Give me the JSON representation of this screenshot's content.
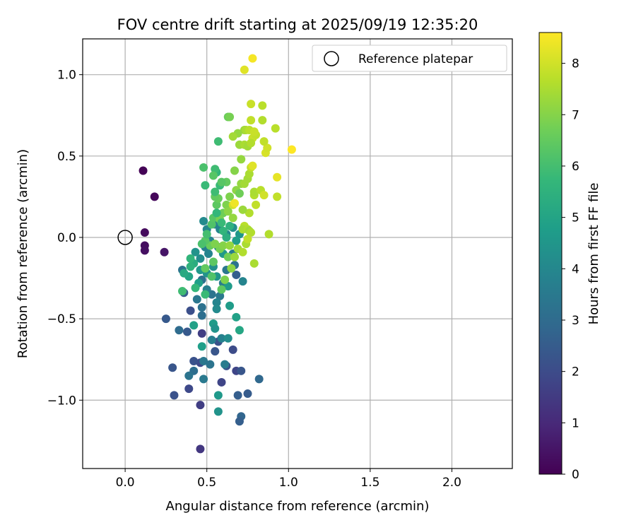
{
  "chart_data": {
    "type": "scatter",
    "title": "FOV centre drift starting at 2025/09/19 12:35:20",
    "xlabel": "Angular distance from reference (arcmin)",
    "ylabel": "Rotation from reference (arcmin)",
    "xlim": [
      -0.26,
      2.37
    ],
    "ylim": [
      -1.42,
      1.22
    ],
    "xticks": [
      0.0,
      0.5,
      1.0,
      1.5,
      2.0
    ],
    "xtick_labels": [
      "0.0",
      "0.5",
      "1.0",
      "1.5",
      "2.0"
    ],
    "yticks": [
      -1.0,
      -0.5,
      0.0,
      0.5,
      1.0
    ],
    "ytick_labels": [
      "−1.0",
      "−0.5",
      "0.0",
      "0.5",
      "1.0"
    ],
    "grid": true,
    "legend": {
      "position": "top-right",
      "label": "Reference platepar"
    },
    "reference_point": {
      "x": 0.0,
      "y": 0.0
    },
    "colorbar": {
      "label": "Hours from first FF file",
      "range": [
        0,
        8.6
      ],
      "ticks": [
        0,
        1,
        2,
        3,
        4,
        5,
        6,
        7,
        8
      ],
      "tick_labels": [
        "0",
        "1",
        "2",
        "3",
        "4",
        "5",
        "6",
        "7",
        "8"
      ],
      "colormap": "viridis",
      "stops": [
        "#440154",
        "#482878",
        "#3e4989",
        "#31688e",
        "#26828e",
        "#1f9e89",
        "#35b779",
        "#6ece58",
        "#b5de2b",
        "#fde725"
      ]
    },
    "points": [
      {
        "x": 0.11,
        "y": 0.41,
        "t": 0.05
      },
      {
        "x": 0.18,
        "y": 0.25,
        "t": 0.15
      },
      {
        "x": 0.12,
        "y": 0.03,
        "t": 0.25
      },
      {
        "x": 0.12,
        "y": -0.05,
        "t": 0.3
      },
      {
        "x": 0.12,
        "y": -0.08,
        "t": 0.35
      },
      {
        "x": 0.24,
        "y": -0.09,
        "t": 0.5
      },
      {
        "x": 0.46,
        "y": -1.3,
        "t": 1.4
      },
      {
        "x": 0.46,
        "y": -1.03,
        "t": 1.6
      },
      {
        "x": 0.59,
        "y": -0.89,
        "t": 1.8
      },
      {
        "x": 0.46,
        "y": -0.77,
        "t": 1.9
      },
      {
        "x": 0.39,
        "y": -0.93,
        "t": 1.9
      },
      {
        "x": 0.3,
        "y": -0.97,
        "t": 2.2
      },
      {
        "x": 0.29,
        "y": -0.8,
        "t": 2.3
      },
      {
        "x": 0.42,
        "y": -0.76,
        "t": 2.2
      },
      {
        "x": 0.68,
        "y": -0.82,
        "t": 1.8
      },
      {
        "x": 0.71,
        "y": -0.82,
        "t": 2.3
      },
      {
        "x": 0.62,
        "y": -0.79,
        "t": 2.2
      },
      {
        "x": 0.75,
        "y": -0.96,
        "t": 2.5
      },
      {
        "x": 0.69,
        "y": -0.97,
        "t": 2.6
      },
      {
        "x": 0.71,
        "y": -1.1,
        "t": 2.8
      },
      {
        "x": 0.7,
        "y": -1.13,
        "t": 2.6
      },
      {
        "x": 0.82,
        "y": -0.87,
        "t": 2.9
      },
      {
        "x": 0.66,
        "y": -0.69,
        "t": 2.0
      },
      {
        "x": 0.55,
        "y": -0.7,
        "t": 2.3
      },
      {
        "x": 0.47,
        "y": -0.59,
        "t": 1.6
      },
      {
        "x": 0.57,
        "y": -0.64,
        "t": 2.2
      },
      {
        "x": 0.25,
        "y": -0.5,
        "t": 2.4
      },
      {
        "x": 0.4,
        "y": -0.45,
        "t": 2.1
      },
      {
        "x": 0.38,
        "y": -0.58,
        "t": 2.4
      },
      {
        "x": 0.33,
        "y": -0.57,
        "t": 3.0
      },
      {
        "x": 0.42,
        "y": -0.82,
        "t": 3.1
      },
      {
        "x": 0.39,
        "y": -0.85,
        "t": 3.3
      },
      {
        "x": 0.48,
        "y": -0.76,
        "t": 3.4
      },
      {
        "x": 0.48,
        "y": -0.87,
        "t": 3.5
      },
      {
        "x": 0.52,
        "y": -0.78,
        "t": 3.3
      },
      {
        "x": 0.61,
        "y": -0.78,
        "t": 3.6
      },
      {
        "x": 0.53,
        "y": -0.63,
        "t": 3.7
      },
      {
        "x": 0.59,
        "y": -0.62,
        "t": 3.8
      },
      {
        "x": 0.63,
        "y": -0.62,
        "t": 4.2
      },
      {
        "x": 0.57,
        "y": -1.07,
        "t": 4.4
      },
      {
        "x": 0.57,
        "y": -0.97,
        "t": 4.6
      },
      {
        "x": 0.47,
        "y": -0.67,
        "t": 4.8
      },
      {
        "x": 0.42,
        "y": -0.54,
        "t": 4.9
      },
      {
        "x": 0.54,
        "y": -0.53,
        "t": 4.7
      },
      {
        "x": 0.55,
        "y": -0.56,
        "t": 4.4
      },
      {
        "x": 0.36,
        "y": -0.34,
        "t": 2.6
      },
      {
        "x": 0.35,
        "y": -0.2,
        "t": 3.3
      },
      {
        "x": 0.47,
        "y": -0.26,
        "t": 3.2
      },
      {
        "x": 0.44,
        "y": -0.38,
        "t": 3.4
      },
      {
        "x": 0.47,
        "y": -0.48,
        "t": 3.1
      },
      {
        "x": 0.47,
        "y": -0.43,
        "t": 3.2
      },
      {
        "x": 0.53,
        "y": -0.35,
        "t": 3.3
      },
      {
        "x": 0.58,
        "y": -0.36,
        "t": 3.5
      },
      {
        "x": 0.56,
        "y": -0.4,
        "t": 3.9
      },
      {
        "x": 0.56,
        "y": -0.44,
        "t": 4.1
      },
      {
        "x": 0.5,
        "y": -0.32,
        "t": 3.7
      },
      {
        "x": 0.6,
        "y": -0.28,
        "t": 3.6
      },
      {
        "x": 0.62,
        "y": -0.2,
        "t": 3.4
      },
      {
        "x": 0.67,
        "y": -0.17,
        "t": 3.3
      },
      {
        "x": 0.68,
        "y": -0.23,
        "t": 2.6
      },
      {
        "x": 0.66,
        "y": -0.1,
        "t": 3.6
      },
      {
        "x": 0.72,
        "y": -0.27,
        "t": 3.9
      },
      {
        "x": 0.64,
        "y": -0.42,
        "t": 4.7
      },
      {
        "x": 0.68,
        "y": -0.49,
        "t": 4.9
      },
      {
        "x": 0.7,
        "y": -0.57,
        "t": 5.1
      },
      {
        "x": 0.57,
        "y": -0.06,
        "t": 3.9
      },
      {
        "x": 0.51,
        "y": -0.1,
        "t": 3.9
      },
      {
        "x": 0.46,
        "y": -0.13,
        "t": 4.2
      },
      {
        "x": 0.43,
        "y": -0.09,
        "t": 4.4
      },
      {
        "x": 0.46,
        "y": -0.2,
        "t": 4.6
      },
      {
        "x": 0.45,
        "y": -0.28,
        "t": 4.8
      },
      {
        "x": 0.39,
        "y": -0.24,
        "t": 5.0
      },
      {
        "x": 0.36,
        "y": -0.22,
        "t": 5.2
      },
      {
        "x": 0.42,
        "y": -0.16,
        "t": 5.3
      },
      {
        "x": 0.49,
        "y": -0.06,
        "t": 3.8
      },
      {
        "x": 0.52,
        "y": -0.02,
        "t": 3.9
      },
      {
        "x": 0.5,
        "y": 0.05,
        "t": 4.0
      },
      {
        "x": 0.48,
        "y": 0.1,
        "t": 4.1
      },
      {
        "x": 0.55,
        "y": 0.08,
        "t": 3.8
      },
      {
        "x": 0.58,
        "y": 0.05,
        "t": 3.9
      },
      {
        "x": 0.62,
        "y": 0.02,
        "t": 4.0
      },
      {
        "x": 0.66,
        "y": 0.06,
        "t": 4.3
      },
      {
        "x": 0.7,
        "y": 0.02,
        "t": 4.5
      },
      {
        "x": 0.68,
        "y": -0.02,
        "t": 4.8
      },
      {
        "x": 0.6,
        "y": -0.1,
        "t": 4.6
      },
      {
        "x": 0.54,
        "y": -0.18,
        "t": 4.3
      },
      {
        "x": 0.56,
        "y": -0.24,
        "t": 4.5
      },
      {
        "x": 0.63,
        "y": -0.3,
        "t": 4.7
      },
      {
        "x": 0.5,
        "y": -0.22,
        "t": 4.4
      },
      {
        "x": 0.4,
        "y": -0.18,
        "t": 5.5
      },
      {
        "x": 0.4,
        "y": -0.13,
        "t": 5.6
      },
      {
        "x": 0.43,
        "y": -0.31,
        "t": 5.7
      },
      {
        "x": 0.35,
        "y": -0.33,
        "t": 5.9
      },
      {
        "x": 0.49,
        "y": -0.35,
        "t": 5.8
      },
      {
        "x": 0.53,
        "y": -0.24,
        "t": 6.2
      },
      {
        "x": 0.49,
        "y": -0.19,
        "t": 6.5
      },
      {
        "x": 0.54,
        "y": -0.15,
        "t": 6.4
      },
      {
        "x": 0.58,
        "y": -0.07,
        "t": 6.8
      },
      {
        "x": 0.6,
        "y": -0.05,
        "t": 7.0
      },
      {
        "x": 0.52,
        "y": -0.05,
        "t": 6.6
      },
      {
        "x": 0.49,
        "y": -0.02,
        "t": 6.3
      },
      {
        "x": 0.47,
        "y": -0.04,
        "t": 6.1
      },
      {
        "x": 0.55,
        "y": -0.04,
        "t": 6.9
      },
      {
        "x": 0.63,
        "y": -0.12,
        "t": 6.7
      },
      {
        "x": 0.65,
        "y": -0.19,
        "t": 7.1
      },
      {
        "x": 0.61,
        "y": -0.26,
        "t": 6.9
      },
      {
        "x": 0.59,
        "y": -0.32,
        "t": 6.4
      },
      {
        "x": 0.67,
        "y": -0.12,
        "t": 7.3
      },
      {
        "x": 0.69,
        "y": -0.07,
        "t": 7.4
      },
      {
        "x": 0.72,
        "y": -0.09,
        "t": 7.6
      },
      {
        "x": 0.74,
        "y": -0.04,
        "t": 7.5
      },
      {
        "x": 0.79,
        "y": -0.16,
        "t": 7.5
      },
      {
        "x": 0.64,
        "y": -0.05,
        "t": 7.2
      },
      {
        "x": 0.5,
        "y": 0.02,
        "t": 6.0
      },
      {
        "x": 0.53,
        "y": 0.08,
        "t": 6.2
      },
      {
        "x": 0.54,
        "y": 0.12,
        "t": 6.3
      },
      {
        "x": 0.56,
        "y": 0.2,
        "t": 6.4
      },
      {
        "x": 0.57,
        "y": 0.24,
        "t": 6.6
      },
      {
        "x": 0.55,
        "y": 0.25,
        "t": 6.5
      },
      {
        "x": 0.6,
        "y": 0.15,
        "t": 6.7
      },
      {
        "x": 0.62,
        "y": 0.2,
        "t": 6.9
      },
      {
        "x": 0.63,
        "y": 0.16,
        "t": 7.1
      },
      {
        "x": 0.66,
        "y": 0.12,
        "t": 7.2
      },
      {
        "x": 0.58,
        "y": 0.11,
        "t": 6.8
      },
      {
        "x": 0.59,
        "y": 0.09,
        "t": 5.8
      },
      {
        "x": 0.6,
        "y": 0.04,
        "t": 5.6
      },
      {
        "x": 0.62,
        "y": 0.0,
        "t": 5.4
      },
      {
        "x": 0.64,
        "y": 0.07,
        "t": 5.5
      },
      {
        "x": 0.56,
        "y": 0.15,
        "t": 5.7
      },
      {
        "x": 0.55,
        "y": 0.28,
        "t": 5.9
      },
      {
        "x": 0.58,
        "y": 0.32,
        "t": 5.8
      },
      {
        "x": 0.56,
        "y": 0.4,
        "t": 5.6
      },
      {
        "x": 0.55,
        "y": 0.42,
        "t": 5.9
      },
      {
        "x": 0.49,
        "y": 0.32,
        "t": 5.8
      },
      {
        "x": 0.48,
        "y": 0.43,
        "t": 6.1
      },
      {
        "x": 0.54,
        "y": 0.38,
        "t": 6.3
      },
      {
        "x": 0.57,
        "y": 0.59,
        "t": 5.9
      },
      {
        "x": 0.63,
        "y": 0.74,
        "t": 6.6
      },
      {
        "x": 0.64,
        "y": 0.74,
        "t": 6.8
      },
      {
        "x": 0.62,
        "y": 0.34,
        "t": 6.5
      },
      {
        "x": 0.59,
        "y": 0.34,
        "t": 6.3
      },
      {
        "x": 0.64,
        "y": 0.25,
        "t": 6.9
      },
      {
        "x": 0.68,
        "y": 0.29,
        "t": 7.1
      },
      {
        "x": 0.7,
        "y": 0.27,
        "t": 6.7
      },
      {
        "x": 0.67,
        "y": 0.41,
        "t": 7.0
      },
      {
        "x": 0.71,
        "y": 0.48,
        "t": 7.2
      },
      {
        "x": 0.7,
        "y": 0.57,
        "t": 7.3
      },
      {
        "x": 0.71,
        "y": 0.33,
        "t": 7.2
      },
      {
        "x": 0.73,
        "y": 0.33,
        "t": 7.4
      },
      {
        "x": 0.75,
        "y": 0.36,
        "t": 7.4
      },
      {
        "x": 0.76,
        "y": 0.39,
        "t": 7.5
      },
      {
        "x": 0.77,
        "y": 0.43,
        "t": 7.8
      },
      {
        "x": 0.78,
        "y": 0.44,
        "t": 8.2
      },
      {
        "x": 0.79,
        "y": 0.26,
        "t": 7.6
      },
      {
        "x": 0.79,
        "y": 0.28,
        "t": 7.5
      },
      {
        "x": 0.83,
        "y": 0.29,
        "t": 7.7
      },
      {
        "x": 0.85,
        "y": 0.26,
        "t": 8.0
      },
      {
        "x": 0.8,
        "y": 0.2,
        "t": 7.8
      },
      {
        "x": 0.76,
        "y": 0.15,
        "t": 7.6
      },
      {
        "x": 0.72,
        "y": 0.17,
        "t": 7.3
      },
      {
        "x": 0.73,
        "y": 0.07,
        "t": 7.7
      },
      {
        "x": 0.72,
        "y": 0.05,
        "t": 7.5
      },
      {
        "x": 0.75,
        "y": 0.05,
        "t": 7.6
      },
      {
        "x": 0.76,
        "y": 0.04,
        "t": 7.4
      },
      {
        "x": 0.77,
        "y": 0.03,
        "t": 7.6
      },
      {
        "x": 0.75,
        "y": -0.01,
        "t": 7.8
      },
      {
        "x": 0.66,
        "y": 0.2,
        "t": 8.0
      },
      {
        "x": 0.67,
        "y": 0.21,
        "t": 8.4
      },
      {
        "x": 0.88,
        "y": 0.02,
        "t": 7.6
      },
      {
        "x": 0.93,
        "y": 0.25,
        "t": 7.8
      },
      {
        "x": 0.93,
        "y": 0.37,
        "t": 8.3
      },
      {
        "x": 0.86,
        "y": 0.52,
        "t": 8.1
      },
      {
        "x": 0.87,
        "y": 0.55,
        "t": 8.0
      },
      {
        "x": 0.85,
        "y": 0.59,
        "t": 7.8
      },
      {
        "x": 0.92,
        "y": 0.67,
        "t": 7.7
      },
      {
        "x": 0.84,
        "y": 0.72,
        "t": 7.6
      },
      {
        "x": 0.84,
        "y": 0.81,
        "t": 7.7
      },
      {
        "x": 0.77,
        "y": 0.82,
        "t": 7.9
      },
      {
        "x": 0.77,
        "y": 0.72,
        "t": 7.8
      },
      {
        "x": 0.73,
        "y": 0.66,
        "t": 7.3
      },
      {
        "x": 0.74,
        "y": 0.66,
        "t": 7.5
      },
      {
        "x": 0.76,
        "y": 0.66,
        "t": 7.7
      },
      {
        "x": 0.78,
        "y": 0.61,
        "t": 7.9
      },
      {
        "x": 0.8,
        "y": 0.63,
        "t": 7.8
      },
      {
        "x": 0.79,
        "y": 0.65,
        "t": 7.9
      },
      {
        "x": 0.69,
        "y": 0.64,
        "t": 7.2
      },
      {
        "x": 0.66,
        "y": 0.62,
        "t": 7.4
      },
      {
        "x": 0.73,
        "y": 0.57,
        "t": 7.5
      },
      {
        "x": 0.75,
        "y": 0.56,
        "t": 7.4
      },
      {
        "x": 0.77,
        "y": 0.58,
        "t": 7.6
      },
      {
        "x": 1.02,
        "y": 0.54,
        "t": 8.6
      },
      {
        "x": 0.73,
        "y": 1.03,
        "t": 8.2
      },
      {
        "x": 0.78,
        "y": 1.1,
        "t": 8.5
      }
    ]
  }
}
